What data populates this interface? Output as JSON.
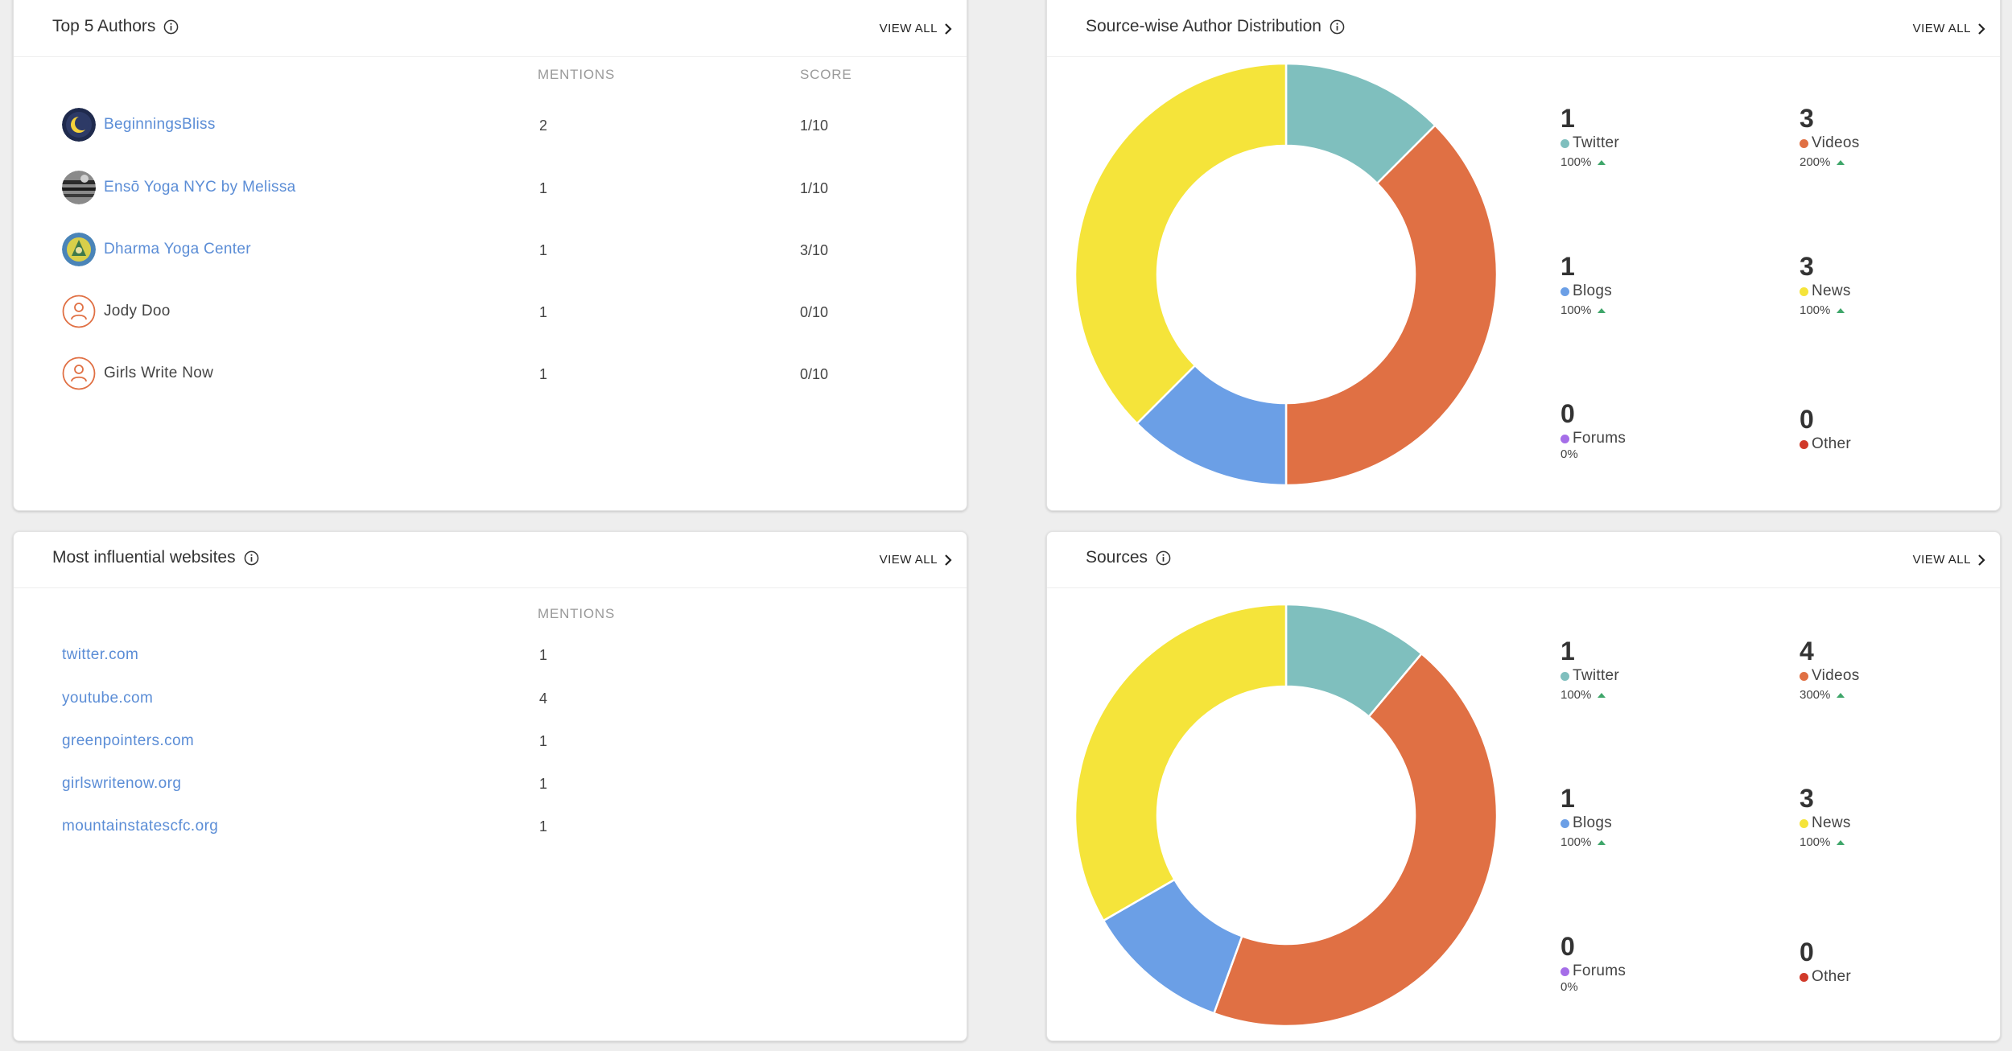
{
  "view_all_label": "VIEW ALL",
  "colors": {
    "twitter": "#7fbfbe",
    "videos": "#e07044",
    "blogs": "#6b9fe6",
    "news": "#f5e43a",
    "forums": "#a56ee8",
    "other": "#d13a2a",
    "link": "#5b8dd6",
    "up_arrow": "#3fa66a"
  },
  "top_authors": {
    "title": "Top 5 Authors",
    "columns": {
      "mentions": "MENTIONS",
      "score": "SCORE"
    },
    "rows": [
      {
        "name": "BeginningsBliss",
        "mentions": "2",
        "score": "1/10",
        "avatar": "moon-logo-avatar",
        "linked": true
      },
      {
        "name": "Ensō Yoga NYC by Melissa",
        "mentions": "1",
        "score": "1/10",
        "avatar": "photo-avatar",
        "linked": true
      },
      {
        "name": "Dharma Yoga Center",
        "mentions": "1",
        "score": "3/10",
        "avatar": "emblem-avatar",
        "linked": true
      },
      {
        "name": "Jody Doo",
        "mentions": "1",
        "score": "0/10",
        "avatar": "person-icon",
        "linked": false
      },
      {
        "name": "Girls Write Now",
        "mentions": "1",
        "score": "0/10",
        "avatar": "person-icon",
        "linked": false
      }
    ]
  },
  "websites": {
    "title": "Most influential websites",
    "columns": {
      "mentions": "MENTIONS"
    },
    "rows": [
      {
        "site": "twitter.com",
        "mentions": "1"
      },
      {
        "site": "youtube.com",
        "mentions": "4"
      },
      {
        "site": "greenpointers.com",
        "mentions": "1"
      },
      {
        "site": "girlswritenow.org",
        "mentions": "1"
      },
      {
        "site": "mountainstatescfc.org",
        "mentions": "1"
      }
    ]
  },
  "author_distribution": {
    "title": "Source-wise Author Distribution",
    "legend": [
      {
        "key": "twitter",
        "value": "1",
        "label": "Twitter",
        "pct": "100%",
        "trend": "up"
      },
      {
        "key": "videos",
        "value": "3",
        "label": "Videos",
        "pct": "200%",
        "trend": "up"
      },
      {
        "key": "blogs",
        "value": "1",
        "label": "Blogs",
        "pct": "100%",
        "trend": "up"
      },
      {
        "key": "news",
        "value": "3",
        "label": "News",
        "pct": "100%",
        "trend": "up"
      },
      {
        "key": "forums",
        "value": "0",
        "label": "Forums",
        "pct": "0%",
        "trend": "none"
      },
      {
        "key": "other",
        "value": "0",
        "label": "Other",
        "pct": "",
        "trend": "none"
      }
    ]
  },
  "sources": {
    "title": "Sources",
    "legend": [
      {
        "key": "twitter",
        "value": "1",
        "label": "Twitter",
        "pct": "100%",
        "trend": "up"
      },
      {
        "key": "videos",
        "value": "4",
        "label": "Videos",
        "pct": "300%",
        "trend": "up"
      },
      {
        "key": "blogs",
        "value": "1",
        "label": "Blogs",
        "pct": "100%",
        "trend": "up"
      },
      {
        "key": "news",
        "value": "3",
        "label": "News",
        "pct": "100%",
        "trend": "up"
      },
      {
        "key": "forums",
        "value": "0",
        "label": "Forums",
        "pct": "0%",
        "trend": "none"
      },
      {
        "key": "other",
        "value": "0",
        "label": "Other",
        "pct": "",
        "trend": "none"
      }
    ]
  },
  "chart_data": [
    {
      "type": "pie",
      "variant": "donut",
      "categories": [
        "Twitter",
        "Videos",
        "Blogs",
        "News"
      ],
      "values": [
        1,
        3,
        1,
        3
      ]
    },
    {
      "type": "pie",
      "variant": "donut",
      "categories": [
        "Twitter",
        "Videos",
        "Blogs",
        "News"
      ],
      "values": [
        1,
        4,
        1,
        3
      ]
    }
  ]
}
